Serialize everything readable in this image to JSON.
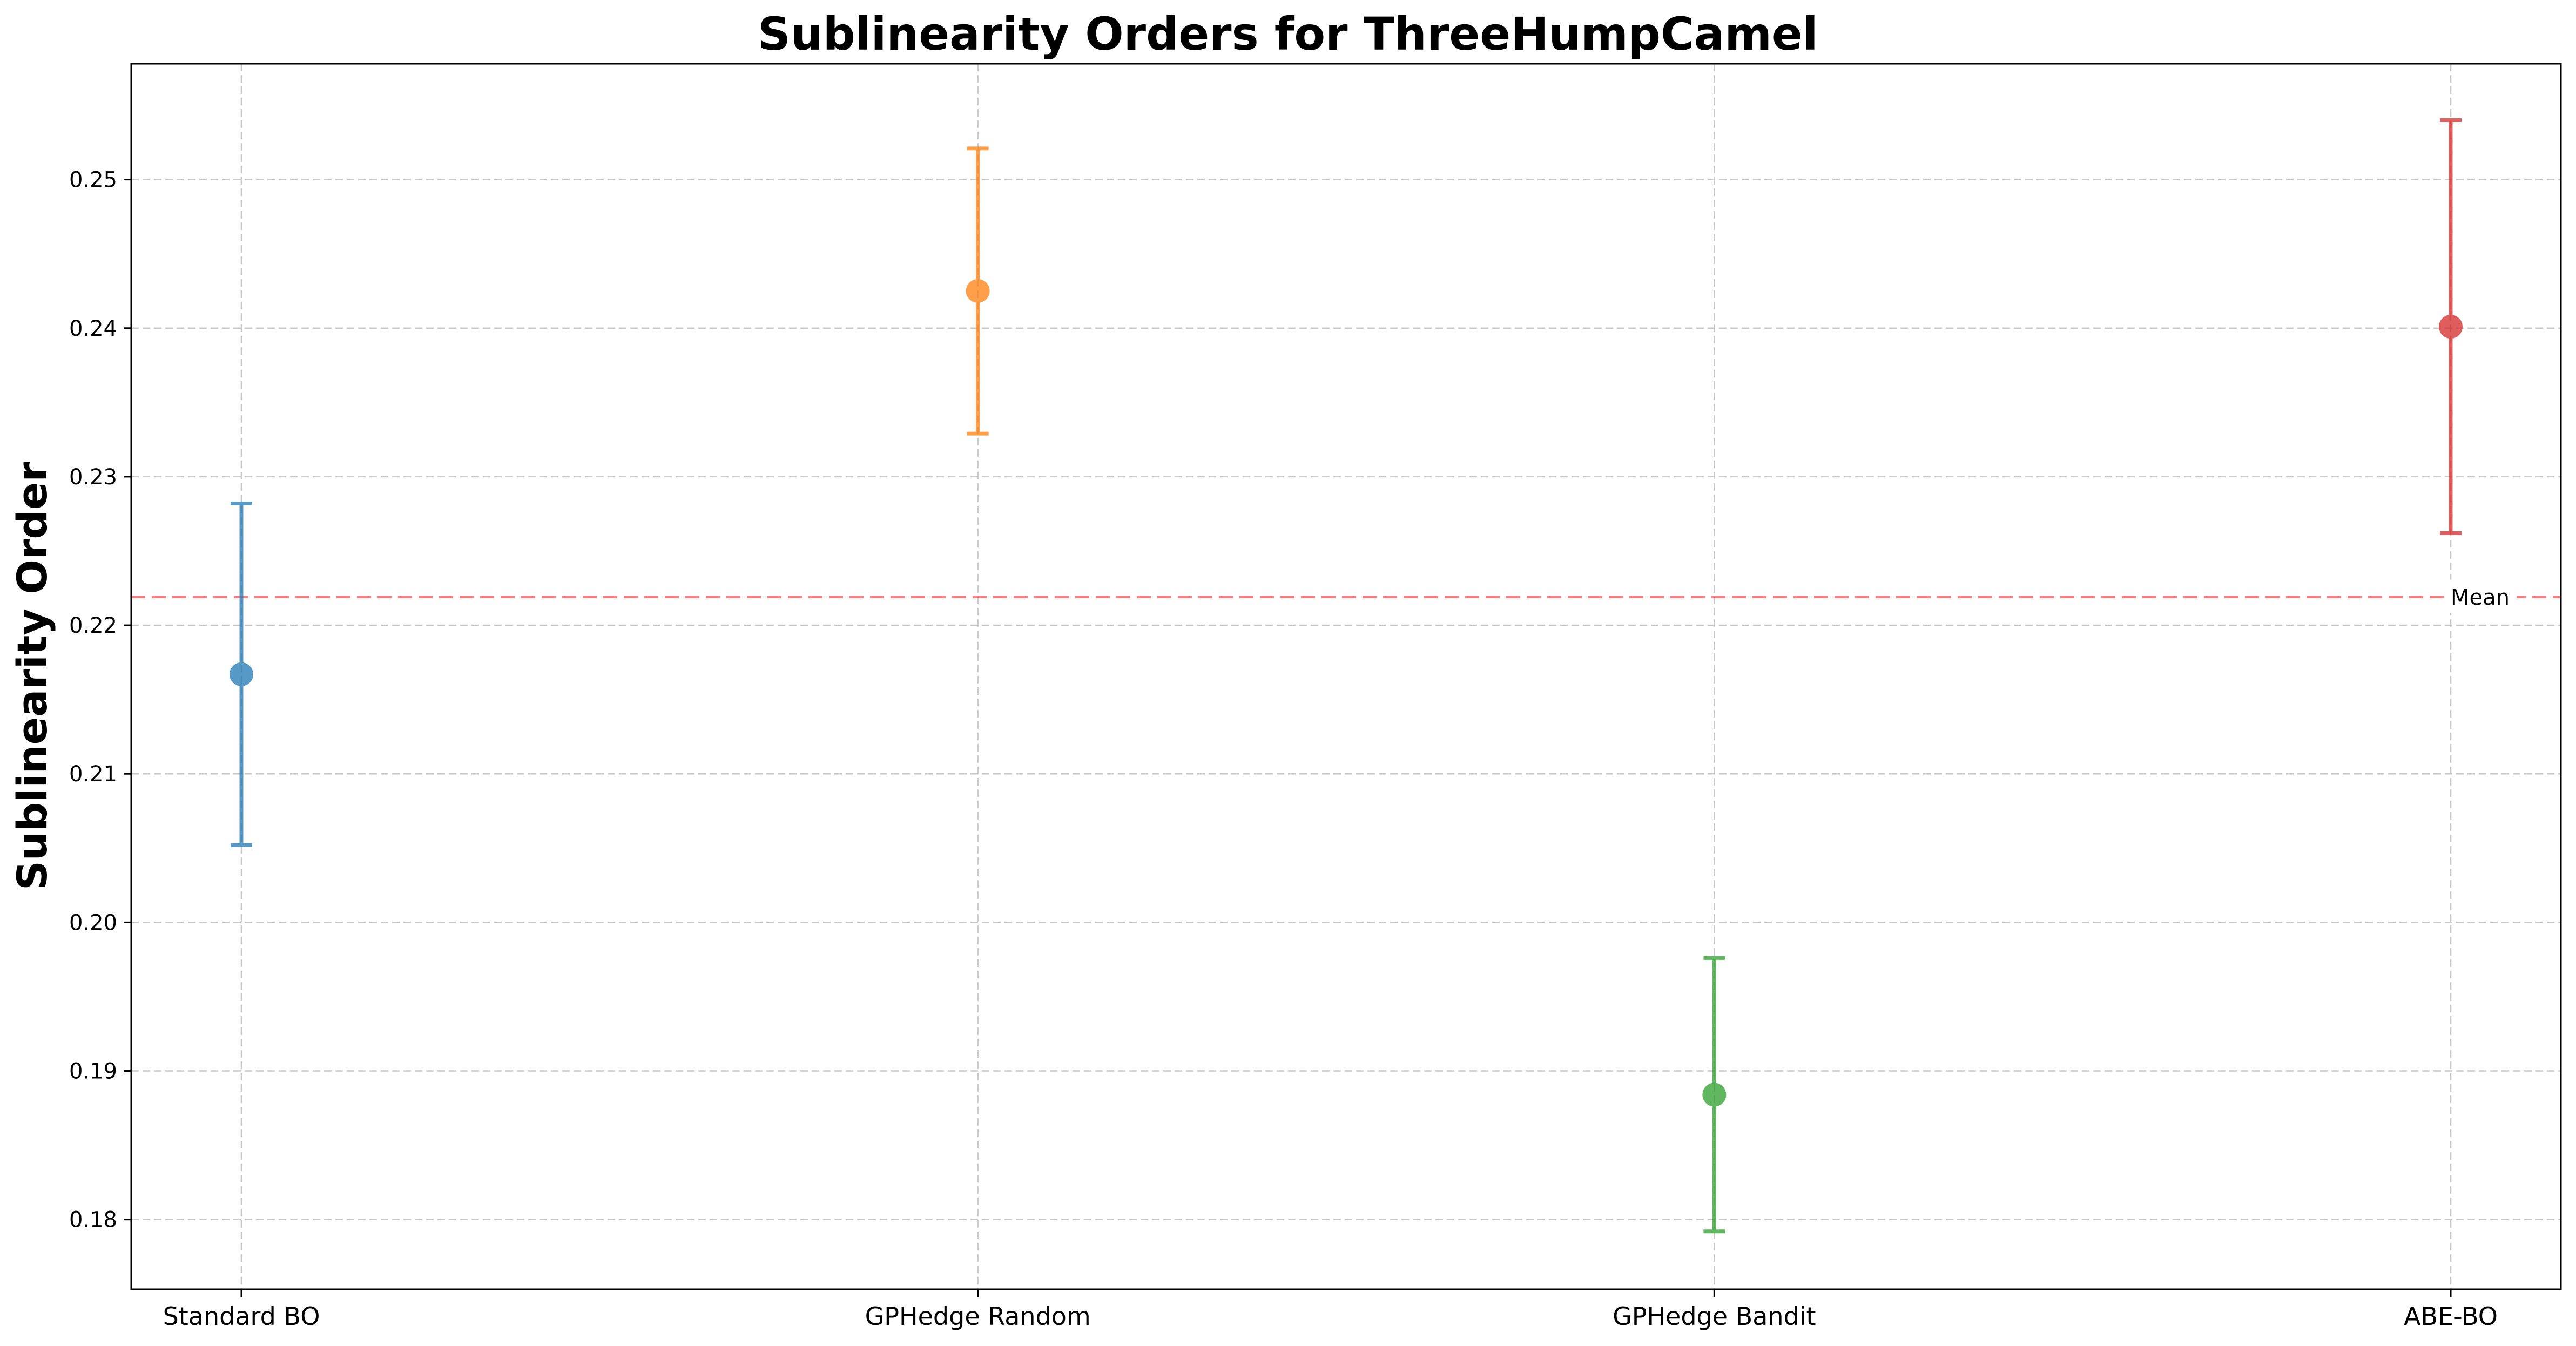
{
  "chart_data": {
    "type": "scatter",
    "title": "Sublinearity Orders for ThreeHumpCamel",
    "xlabel": "",
    "ylabel": "Sublinearity Order",
    "categories": [
      "Standard BO",
      "GPHedge Random",
      "GPHedge Bandit",
      "ABE-BO"
    ],
    "points": [
      {
        "category": "Standard BO",
        "value": 0.2167,
        "lower": 0.2052,
        "upper": 0.2282,
        "color": "#1f77b4"
      },
      {
        "category": "GPHedge Random",
        "value": 0.2425,
        "lower": 0.2329,
        "upper": 0.2521,
        "color": "#ff7f0e"
      },
      {
        "category": "GPHedge Bandit",
        "value": 0.1884,
        "lower": 0.1792,
        "upper": 0.1976,
        "color": "#2ca02c"
      },
      {
        "category": "ABE-BO",
        "value": 0.2401,
        "lower": 0.2262,
        "upper": 0.254,
        "color": "#d62728"
      }
    ],
    "ylim": [
      0.1753,
      0.2578
    ],
    "yticks": [
      "0.18",
      "0.19",
      "0.20",
      "0.21",
      "0.22",
      "0.23",
      "0.24",
      "0.25"
    ],
    "mean_line": {
      "value": 0.2219,
      "label": "Mean",
      "color": "#ff0000"
    },
    "grid": true
  }
}
